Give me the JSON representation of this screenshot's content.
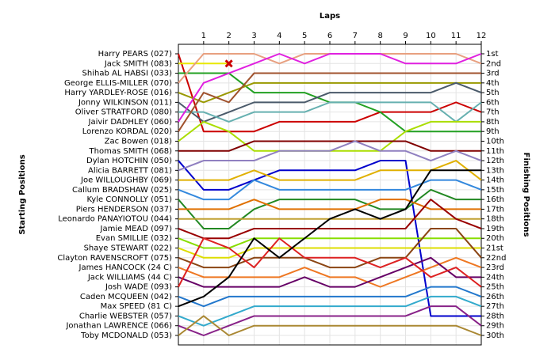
{
  "chart_data": {
    "type": "lap",
    "title": "Laps",
    "ylabel": "Starting Positions",
    "y2label": "Finishing Positions",
    "x": [
      0,
      1,
      2,
      3,
      4,
      5,
      6,
      7,
      8,
      9,
      10,
      11,
      12
    ],
    "xlim": [
      0,
      12
    ],
    "xticks": [
      1,
      2,
      3,
      4,
      5,
      6,
      7,
      8,
      9,
      10,
      11,
      12
    ],
    "ylim": [
      1,
      30
    ],
    "y_reversed": true,
    "yticks": [
      1,
      2,
      3,
      4,
      5,
      6,
      7,
      8,
      9,
      10,
      11,
      12,
      13,
      14,
      15,
      16,
      17,
      18,
      19,
      20,
      21,
      22,
      23,
      24,
      25,
      26,
      27,
      28,
      29,
      30
    ],
    "finish_labels": [
      "1st",
      "2nd",
      "3rd",
      "4th",
      "5th",
      "6th",
      "7th",
      "8th",
      "9th",
      "10th",
      "11th",
      "12th",
      "13th",
      "14th",
      "15th",
      "16th",
      "17th",
      "18th",
      "19th",
      "20th",
      "21st",
      "22nd",
      "23rd",
      "24th",
      "25th",
      "26th",
      "27th",
      "28th",
      "29th",
      "30th"
    ],
    "grid": true,
    "retired_marker_color": "#cc0000",
    "series": [
      {
        "name": "Harry PEARS (027)",
        "color": "#cc0000",
        "values": [
          1,
          9,
          9,
          9,
          8,
          8,
          8,
          8,
          7,
          7,
          7,
          6,
          7
        ]
      },
      {
        "name": "Jack SMITH (083)",
        "color": "#e8e800",
        "values": [
          2,
          2,
          2,
          null,
          null,
          null,
          null,
          null,
          null,
          null,
          null,
          null,
          null
        ],
        "retired": true
      },
      {
        "name": "Shihab AL HABSI (033)",
        "color": "#22a022",
        "values": [
          3,
          3,
          3,
          5,
          5,
          5,
          6,
          6,
          7,
          9,
          9,
          9,
          9
        ]
      },
      {
        "name": "George ELLIS-MILLER (070)",
        "color": "#e8a080",
        "values": [
          4,
          1,
          1,
          1,
          2,
          1,
          1,
          1,
          1,
          1,
          1,
          1,
          2
        ]
      },
      {
        "name": "Harry YARDLEY-ROSE (016)",
        "color": "#999900",
        "values": [
          5,
          6,
          5,
          4,
          4,
          4,
          4,
          4,
          4,
          4,
          4,
          4,
          4
        ]
      },
      {
        "name": "Jonny WILKINSON (011)",
        "color": "#4a5a6a",
        "values": [
          6,
          8,
          7,
          6,
          6,
          6,
          5,
          5,
          5,
          5,
          5,
          4,
          5
        ]
      },
      {
        "name": "Oliver STRATFORD (080)",
        "color": "#66b0b0",
        "values": [
          7,
          7,
          8,
          7,
          7,
          7,
          6,
          6,
          6,
          6,
          6,
          8,
          6
        ]
      },
      {
        "name": "Jaivir DADHLEY (060)",
        "color": "#e020e0",
        "values": [
          8,
          4,
          3,
          2,
          1,
          2,
          1,
          1,
          1,
          2,
          2,
          2,
          1
        ]
      },
      {
        "name": "Lorenzo KORDAL (020)",
        "color": "#a0522d",
        "values": [
          9,
          5,
          6,
          3,
          3,
          3,
          3,
          3,
          3,
          3,
          3,
          3,
          3
        ]
      },
      {
        "name": "Zac Bowen (018)",
        "color": "#aadd00",
        "values": [
          10,
          8,
          9,
          11,
          11,
          11,
          11,
          11,
          11,
          9,
          8,
          8,
          8
        ]
      },
      {
        "name": "Thomas SMITH (068)",
        "color": "#800000",
        "values": [
          11,
          11,
          11,
          10,
          10,
          10,
          10,
          10,
          10,
          10,
          11,
          11,
          11
        ]
      },
      {
        "name": "Dylan HOTCHIN (050)",
        "color": "#0000cc",
        "values": [
          12,
          15,
          15,
          14,
          13,
          13,
          13,
          13,
          12,
          12,
          28,
          28,
          28
        ]
      },
      {
        "name": "Alicia BARRETT (081)",
        "color": "#9080c0",
        "values": [
          13,
          12,
          12,
          12,
          11,
          11,
          11,
          10,
          11,
          11,
          12,
          11,
          12
        ]
      },
      {
        "name": "Joe WILLOUGHBY (069)",
        "color": "#e0b000",
        "values": [
          14,
          14,
          14,
          13,
          14,
          14,
          14,
          14,
          13,
          13,
          13,
          12,
          14
        ]
      },
      {
        "name": "Callum BRADSHAW (025)",
        "color": "#3388dd",
        "values": [
          15,
          16,
          16,
          14,
          15,
          15,
          15,
          15,
          15,
          15,
          14,
          14,
          15
        ]
      },
      {
        "name": "Kyle CONNOLLY (051)",
        "color": "#228822",
        "values": [
          16,
          19,
          19,
          17,
          16,
          16,
          16,
          16,
          17,
          17,
          15,
          16,
          16
        ]
      },
      {
        "name": "Piers HENDERSON (037)",
        "color": "#e07000",
        "values": [
          17,
          17,
          17,
          16,
          17,
          17,
          17,
          17,
          16,
          16,
          17,
          17,
          17
        ]
      },
      {
        "name": "Leonardo PANAYIOTOU (044)",
        "color": "#c0a030",
        "values": [
          18,
          18,
          18,
          18,
          18,
          18,
          18,
          18,
          18,
          18,
          18,
          18,
          18
        ]
      },
      {
        "name": "Jamie MEAD (097)",
        "color": "#990000",
        "values": [
          19,
          20,
          20,
          19,
          19,
          19,
          19,
          19,
          19,
          19,
          16,
          18,
          19
        ]
      },
      {
        "name": "Evan SMILLIE (032)",
        "color": "#88dd00",
        "values": [
          20,
          21,
          21,
          20,
          20,
          20,
          20,
          20,
          20,
          20,
          20,
          20,
          20
        ]
      },
      {
        "name": "Shaye STEWART (022)",
        "color": "#dddd00",
        "values": [
          21,
          22,
          22,
          21,
          21,
          21,
          21,
          21,
          21,
          21,
          21,
          21,
          21
        ]
      },
      {
        "name": "Clayton RAVENSCROFT (075)",
        "color": "#8b4513",
        "values": [
          22,
          23,
          23,
          22,
          22,
          22,
          23,
          23,
          22,
          22,
          19,
          19,
          22
        ]
      },
      {
        "name": "James HANCOCK (24 C)",
        "color": "#ee7722",
        "values": [
          23,
          24,
          24,
          24,
          24,
          23,
          24,
          24,
          25,
          24,
          23,
          22,
          23
        ]
      },
      {
        "name": "Jack WILLIAMS (44 C)",
        "color": "#660066",
        "values": [
          24,
          25,
          25,
          25,
          25,
          24,
          25,
          25,
          24,
          23,
          22,
          24,
          24
        ]
      },
      {
        "name": "Josh WADE (093)",
        "color": "#dd2222",
        "values": [
          25,
          20,
          21,
          23,
          20,
          22,
          22,
          22,
          23,
          22,
          24,
          23,
          25
        ]
      },
      {
        "name": "Caden MCQUEEN (042)",
        "color": "#2277cc",
        "values": [
          26,
          27,
          26,
          26,
          26,
          26,
          26,
          26,
          26,
          26,
          25,
          25,
          26
        ]
      },
      {
        "name": "Max SPEED (81 C)",
        "color": "#000000",
        "values": [
          27,
          26,
          24,
          20,
          22,
          20,
          18,
          17,
          18,
          17,
          13,
          13,
          13
        ]
      },
      {
        "name": "Charlie WEBSTER (057)",
        "color": "#33aacc",
        "values": [
          28,
          29,
          28,
          27,
          27,
          27,
          27,
          27,
          27,
          27,
          26,
          26,
          27
        ]
      },
      {
        "name": "Jonathan LAWRENCE (066)",
        "color": "#882288",
        "values": [
          29,
          30,
          29,
          28,
          28,
          28,
          28,
          28,
          28,
          28,
          27,
          27,
          29
        ]
      },
      {
        "name": "Toby MCDONALD (053)",
        "color": "#aa8833",
        "values": [
          30,
          28,
          30,
          29,
          29,
          29,
          29,
          29,
          29,
          29,
          29,
          29,
          30
        ]
      }
    ]
  }
}
